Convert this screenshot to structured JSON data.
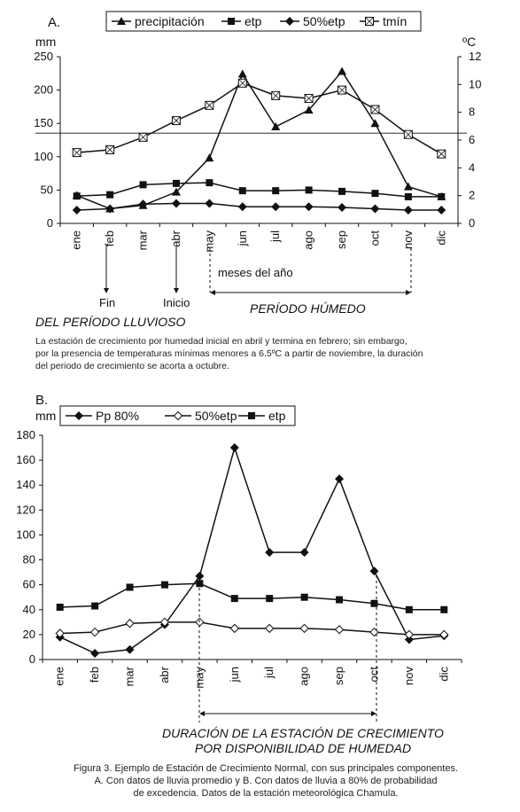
{
  "chart_data": [
    {
      "type": "line",
      "panel_label": "A.",
      "y_unit_left": "mm",
      "y_unit_right": "ºC",
      "categories": [
        "ene",
        "feb",
        "mar",
        "abr",
        "may",
        "jun",
        "jul",
        "ago",
        "sep",
        "oct",
        "nov",
        "dic"
      ],
      "ylim": [
        0,
        250
      ],
      "yticks": [
        "0",
        "50",
        "100",
        "150",
        "200",
        "250"
      ],
      "y2lim": [
        0,
        12
      ],
      "y2ticks": [
        "0",
        "2",
        "4",
        "6",
        "8",
        "10",
        "12"
      ],
      "reference_line_y2": 6.5,
      "series": [
        {
          "name": "precipitación",
          "axis": "left",
          "marker": "triangle",
          "values": [
            42,
            22,
            27,
            47,
            98,
            224,
            145,
            170,
            228,
            150,
            55,
            40
          ]
        },
        {
          "name": "etp",
          "axis": "left",
          "marker": "square",
          "values": [
            41,
            43,
            58,
            60,
            61,
            49,
            49,
            50,
            48,
            45,
            40,
            40
          ]
        },
        {
          "name": "50%etp",
          "axis": "left",
          "marker": "diamond",
          "values": [
            20,
            22,
            29,
            30,
            30,
            25,
            25,
            25,
            24,
            22,
            20,
            20
          ]
        },
        {
          "name": "tmín",
          "axis": "right",
          "marker": "square-x",
          "values": [
            5.1,
            5.3,
            6.2,
            7.4,
            8.5,
            10.1,
            9.2,
            9.0,
            9.6,
            8.2,
            6.4,
            5.0
          ]
        }
      ],
      "annotations": {
        "fin": "Fin",
        "inicio": "Inicio",
        "meses": "meses del año",
        "periodo_lluvioso": "DEL PERÍODO LLUVIOSO",
        "periodo_humedo": "PERÍODO HÚMEDO",
        "note_lines": [
          "La estación de crecimiento por humedad inicial en abril y termina en febrero; sin embargo,",
          "por la presencia de temperaturas mínimas menores a 6.5ºC a partir de noviembre, la duración",
          "del periodo de crecimiento se acorta a octubre."
        ]
      }
    },
    {
      "type": "line",
      "panel_label": "B.",
      "y_unit_left": "mm",
      "categories": [
        "ene",
        "feb",
        "mar",
        "abr",
        "may",
        "jun",
        "jul",
        "ago",
        "sep",
        "oct",
        "nov",
        "dic"
      ],
      "ylim": [
        0,
        180
      ],
      "yticks": [
        "0",
        "20",
        "40",
        "60",
        "80",
        "100",
        "120",
        "140",
        "160",
        "180"
      ],
      "series": [
        {
          "name": "Pp 80%",
          "marker": "diamond",
          "values": [
            18,
            5,
            8,
            28,
            67,
            170,
            86,
            86,
            145,
            71,
            16,
            19
          ]
        },
        {
          "name": "50%etp",
          "marker": "diamond-open",
          "values": [
            21,
            22,
            29,
            30,
            30,
            25,
            25,
            25,
            24,
            22,
            20,
            20
          ]
        },
        {
          "name": "etp",
          "marker": "square",
          "values": [
            42,
            43,
            58,
            60,
            61,
            49,
            49,
            50,
            48,
            45,
            40,
            40
          ]
        }
      ],
      "annotations": {
        "duracion_line1": "DURACIÓN DE LA ESTACIÓN DE CRECIMIENTO",
        "duracion_line2": "POR DISPONIBILIDAD DE HUMEDAD"
      }
    }
  ],
  "caption_lines": [
    "Figura 3. Ejemplo de Estación de Crecimiento Normal, con sus principales componentes.",
    "A. Con datos de lluvia promedio y B. Con datos de lluvia a 80% de probabilidad",
    "de excedencia. Datos de la estación meteorológica Chamula."
  ]
}
